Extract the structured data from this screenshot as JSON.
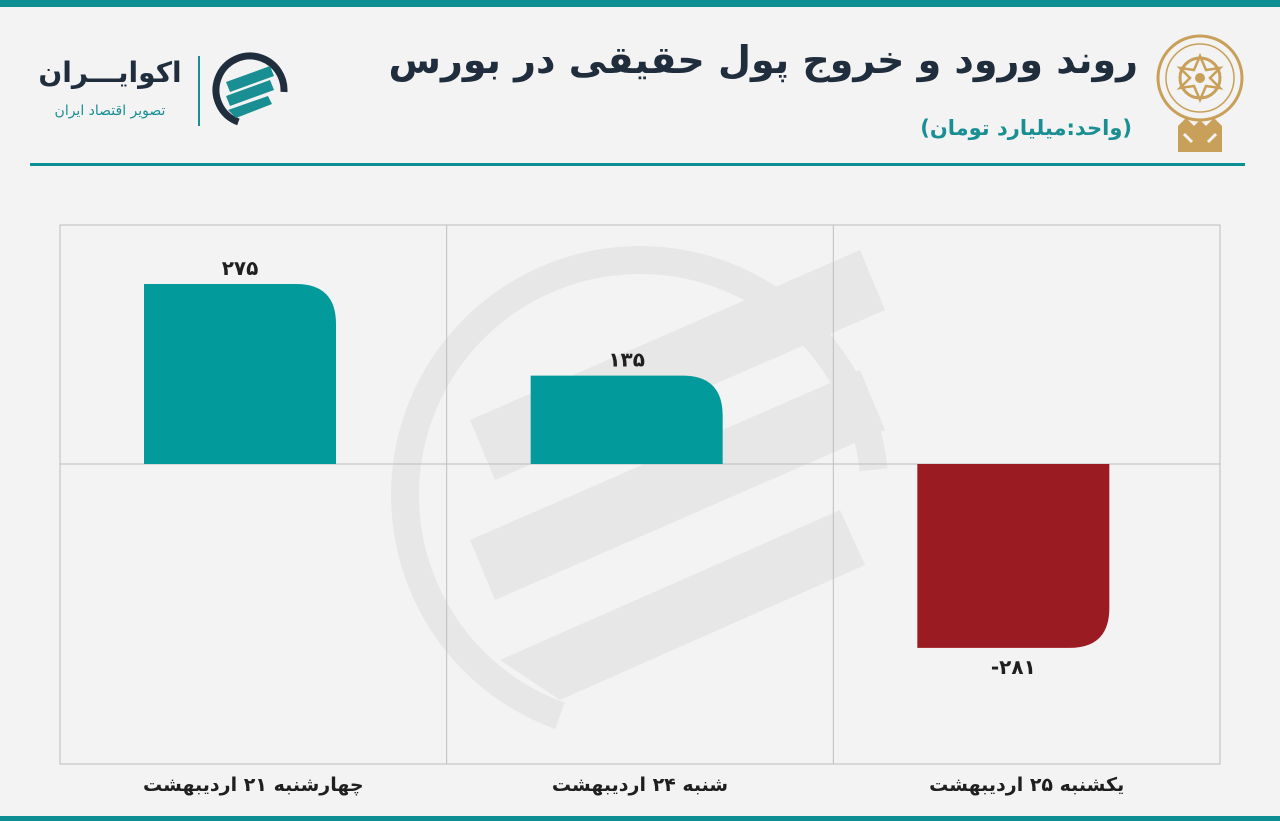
{
  "header": {
    "title": "روند ورود و خروج پول حقیقی در بورس",
    "unit": "(واحد:میلیارد تومان)"
  },
  "brand": {
    "name": "اکوایـــران",
    "tagline": "تصویر اقتصاد ایران"
  },
  "colors": {
    "accent": "#0d8e92",
    "positive": "#029a9b",
    "negative": "#9b1b22",
    "text": "#1f2d3d",
    "seal": "#c9a05a"
  },
  "chart_data": {
    "type": "bar",
    "title": "روند ورود و خروج پول حقیقی در بورس",
    "subtitle": "(واحد:میلیارد تومان)",
    "categories": [
      "چهارشنبه ۲۱ اردیبهشت",
      "شنبه ۲۴ اردیبهشت",
      "یکشنبه ۲۵ اردیبهشت"
    ],
    "values": [
      275,
      135,
      -281
    ],
    "data_labels": [
      "۲۷۵",
      "۱۳۵",
      "-۲۸۱"
    ],
    "ylim": [
      -300,
      300
    ],
    "grid": true,
    "legend": "none"
  }
}
